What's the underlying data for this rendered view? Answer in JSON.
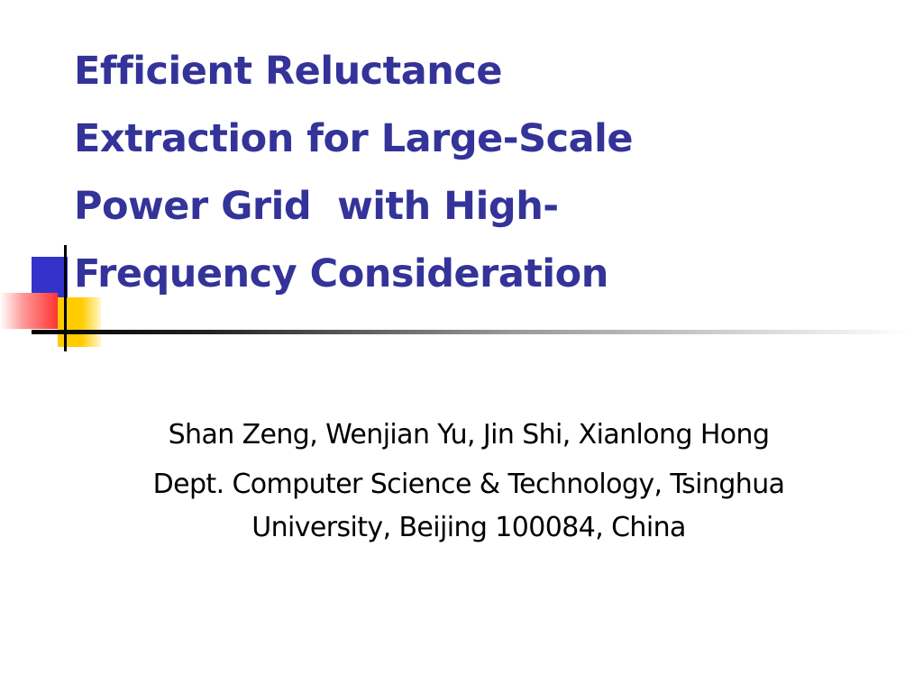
{
  "title": {
    "lines": [
      "Efficient Reluctance",
      "Extraction for Large-Scale",
      "Power Grid  with High-",
      "Frequency Consideration"
    ]
  },
  "authors": "Shan Zeng, Wenjian Yu, Jin Shi, Xianlong Hong",
  "affiliation": {
    "lines": [
      "Dept. Computer Science & Technology, Tsinghua",
      "University, Beijing 100084, China"
    ]
  }
}
